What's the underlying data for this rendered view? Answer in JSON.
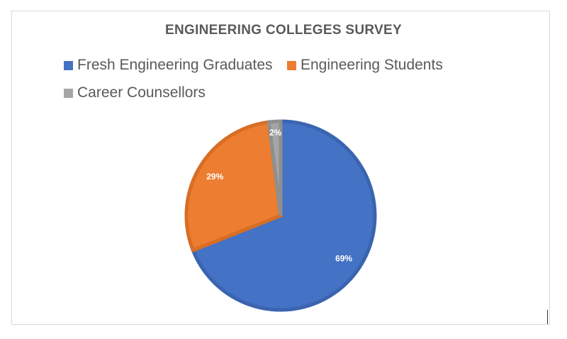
{
  "chart_data": {
    "type": "pie",
    "title": "ENGINEERING COLLEGES SURVEY",
    "legend_position": "top",
    "categories": [
      "Fresh Engineering Graduates",
      "Engineering Students",
      "Career Counsellors"
    ],
    "values": [
      69,
      29,
      2
    ],
    "data_labels": [
      "69%",
      "29%",
      "2%"
    ],
    "colors": [
      "#4472c4",
      "#ed7d31",
      "#a5a5a5"
    ],
    "border_colors": [
      "#3a64b0",
      "#d86d25",
      "#8f8f8f"
    ],
    "start_angle_deg": 0,
    "direction": "clockwise"
  }
}
